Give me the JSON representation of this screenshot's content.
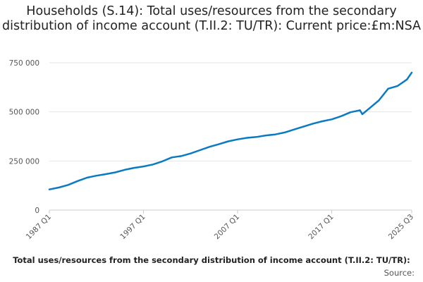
{
  "chart_data": {
    "type": "line",
    "title": "Households (S.14): Total uses/resources from the secondary distribution of income account (T.II.2: TU/TR): Current price:£m:NSA",
    "xlabel": "Total uses/resources from the secondary distribution of income account (T.II.2: TU/TR):",
    "source": "Source:",
    "ylim": [
      0,
      750000
    ],
    "yticks": [
      0,
      250000,
      500000,
      750000
    ],
    "ytick_labels": [
      "0",
      "250 000",
      "500 000",
      "750 000"
    ],
    "xtick_labels": [
      "1987 Q1",
      "1997 Q1",
      "2007 Q1",
      "2017 Q1",
      "2025 Q3"
    ],
    "x_range": [
      "1987 Q1",
      "2025 Q3"
    ],
    "grid": "horizontal",
    "colors": {
      "line": "#0a7bc2",
      "grid": "#e6e6e6",
      "axis": "#cccccc"
    },
    "series": [
      {
        "x": [
          "1987 Q1",
          "1988 Q1",
          "1989 Q1",
          "1990 Q1",
          "1991 Q1",
          "1992 Q1",
          "1993 Q1",
          "1994 Q1",
          "1995 Q1",
          "1996 Q1",
          "1997 Q1",
          "1998 Q1",
          "1999 Q1",
          "2000 Q1",
          "2001 Q1",
          "2002 Q1",
          "2003 Q1",
          "2004 Q1",
          "2005 Q1",
          "2006 Q1",
          "2007 Q1",
          "2008 Q1",
          "2009 Q1",
          "2010 Q1",
          "2011 Q1",
          "2012 Q1",
          "2013 Q1",
          "2014 Q1",
          "2015 Q1",
          "2016 Q1",
          "2017 Q1",
          "2018 Q1",
          "2019 Q1",
          "2020 Q1",
          "2020 Q2",
          "2021 Q1",
          "2022 Q1",
          "2023 Q1",
          "2024 Q1",
          "2025 Q1",
          "2025 Q3"
        ],
        "values": [
          105000,
          115000,
          128000,
          148000,
          165000,
          175000,
          183000,
          192000,
          205000,
          215000,
          222000,
          232000,
          248000,
          268000,
          275000,
          288000,
          305000,
          322000,
          335000,
          350000,
          360000,
          368000,
          372000,
          380000,
          385000,
          395000,
          410000,
          425000,
          440000,
          452000,
          462000,
          478000,
          498000,
          508000,
          488000,
          518000,
          558000,
          618000,
          632000,
          665000,
          700000
        ]
      }
    ]
  }
}
